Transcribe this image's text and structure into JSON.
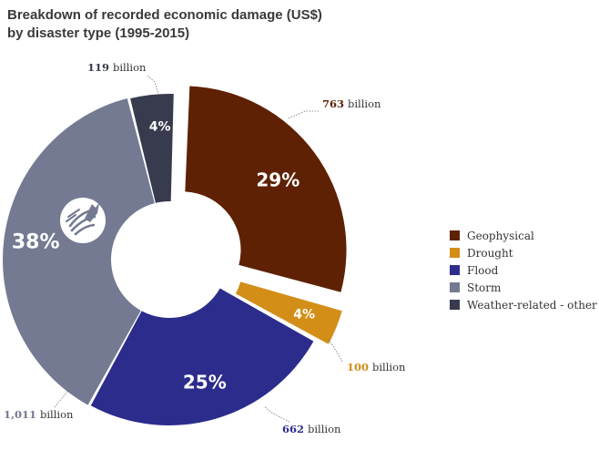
{
  "chart_data": {
    "type": "pie",
    "variant": "donut",
    "title_line1": "Breakdown of recorded economic damage (US$)",
    "title_line2": "by disaster type (1995-2015)",
    "unit_word": "billion",
    "slices": [
      {
        "name": "Geophysical",
        "value": 763,
        "value_label": "763",
        "percent_label": "29%",
        "color": "#5e2103",
        "exploded": true
      },
      {
        "name": "Drought",
        "value": 100,
        "value_label": "100",
        "percent_label": "4%",
        "color": "#d38e18",
        "exploded": true
      },
      {
        "name": "Flood",
        "value": 662,
        "value_label": "662",
        "percent_label": "25%",
        "color": "#2c2c8c",
        "exploded": false
      },
      {
        "name": "Storm",
        "value": 1011,
        "value_label": "1,011",
        "percent_label": "38%",
        "color": "#747a92",
        "exploded": false
      },
      {
        "name": "Weather-related - other",
        "value": 119,
        "value_label": "119",
        "percent_label": "4%",
        "color": "#383a4e",
        "exploded": false
      }
    ],
    "legend_position": "right",
    "icons": {
      "storm_slice": "storm-icon"
    }
  }
}
